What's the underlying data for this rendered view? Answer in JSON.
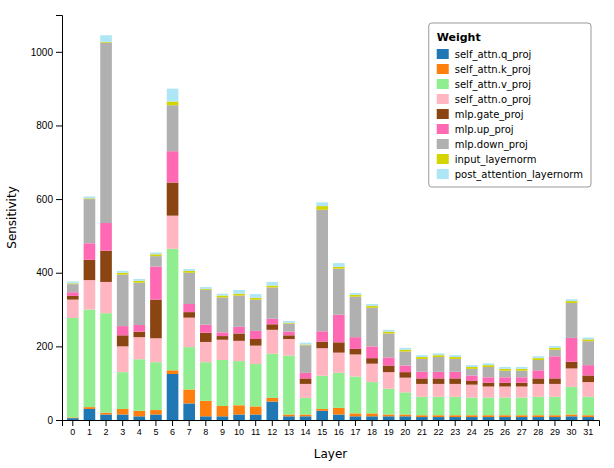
{
  "chart_data": {
    "type": "bar",
    "stacked": true,
    "xlabel": "Layer",
    "ylabel": "Sensitivity",
    "legend_title": "Weight",
    "legend": "upper-right",
    "grid": false,
    "ylim": [
      0,
      1100
    ],
    "yticks": [
      0,
      200,
      400,
      600,
      800,
      1000
    ],
    "categories": [
      "0",
      "1",
      "2",
      "3",
      "4",
      "5",
      "6",
      "7",
      "8",
      "9",
      "10",
      "11",
      "12",
      "13",
      "14",
      "15",
      "16",
      "17",
      "18",
      "19",
      "20",
      "21",
      "22",
      "23",
      "24",
      "25",
      "26",
      "27",
      "28",
      "29",
      "30",
      "31"
    ],
    "series": [
      {
        "name": "self_attn.q_proj",
        "color": "#1f77b4",
        "values": [
          5,
          30,
          15,
          15,
          10,
          15,
          125,
          45,
          10,
          10,
          15,
          15,
          50,
          10,
          10,
          25,
          15,
          10,
          10,
          10,
          10,
          8,
          8,
          8,
          8,
          8,
          8,
          8,
          8,
          8,
          10,
          8
        ]
      },
      {
        "name": "self_attn.k_proj",
        "color": "#ff7f0e",
        "values": [
          2,
          5,
          5,
          15,
          15,
          12,
          10,
          38,
          42,
          28,
          25,
          22,
          10,
          5,
          5,
          5,
          18,
          8,
          8,
          5,
          5,
          5,
          5,
          5,
          5,
          5,
          5,
          5,
          5,
          5,
          5,
          5
        ]
      },
      {
        "name": "self_attn.v_proj",
        "color": "#90ee90",
        "values": [
          270,
          265,
          270,
          100,
          140,
          130,
          330,
          115,
          105,
          125,
          120,
          115,
          120,
          160,
          45,
          90,
          95,
          100,
          85,
          70,
          60,
          50,
          50,
          50,
          48,
          48,
          48,
          48,
          50,
          50,
          75,
          50
        ]
      },
      {
        "name": "self_attn.o_proj",
        "color": "#ffb6c1",
        "values": [
          50,
          80,
          85,
          70,
          60,
          65,
          90,
          80,
          55,
          55,
          55,
          50,
          65,
          45,
          38,
          75,
          55,
          60,
          50,
          45,
          40,
          35,
          35,
          35,
          35,
          30,
          30,
          30,
          35,
          35,
          50,
          40
        ]
      },
      {
        "name": "mlp.gate_proj",
        "color": "#8B4513",
        "values": [
          10,
          55,
          85,
          30,
          15,
          105,
          90,
          15,
          25,
          10,
          20,
          18,
          15,
          10,
          15,
          18,
          28,
          15,
          15,
          18,
          15,
          15,
          15,
          15,
          10,
          10,
          10,
          10,
          15,
          15,
          18,
          18
        ]
      },
      {
        "name": "mlp.up_proj",
        "color": "#ff69b4",
        "values": [
          10,
          45,
          75,
          25,
          18,
          90,
          85,
          22,
          22,
          10,
          18,
          22,
          15,
          10,
          15,
          28,
          75,
          32,
          32,
          22,
          18,
          18,
          18,
          18,
          15,
          15,
          15,
          15,
          22,
          60,
          65,
          28
        ]
      },
      {
        "name": "mlp.down_proj",
        "color": "#b0b0b0",
        "values": [
          22,
          120,
          490,
          140,
          115,
          28,
          125,
          85,
          95,
          95,
          85,
          85,
          85,
          22,
          75,
          330,
          125,
          110,
          105,
          65,
          38,
          35,
          40,
          35,
          18,
          28,
          18,
          18,
          28,
          18,
          95,
          65
        ]
      },
      {
        "name": "input_layernorm",
        "color": "#d4d400",
        "values": [
          2,
          2,
          2,
          5,
          5,
          5,
          10,
          5,
          2,
          5,
          5,
          5,
          5,
          2,
          2,
          10,
          5,
          5,
          5,
          5,
          5,
          5,
          5,
          5,
          5,
          5,
          5,
          5,
          5,
          5,
          5,
          5
        ]
      },
      {
        "name": "post_attention_layernorm",
        "color": "#aee6f5",
        "values": [
          5,
          5,
          18,
          5,
          5,
          5,
          35,
          5,
          5,
          5,
          10,
          10,
          10,
          5,
          5,
          10,
          10,
          5,
          5,
          5,
          5,
          5,
          5,
          5,
          5,
          5,
          5,
          5,
          5,
          5,
          5,
          5
        ]
      }
    ]
  }
}
